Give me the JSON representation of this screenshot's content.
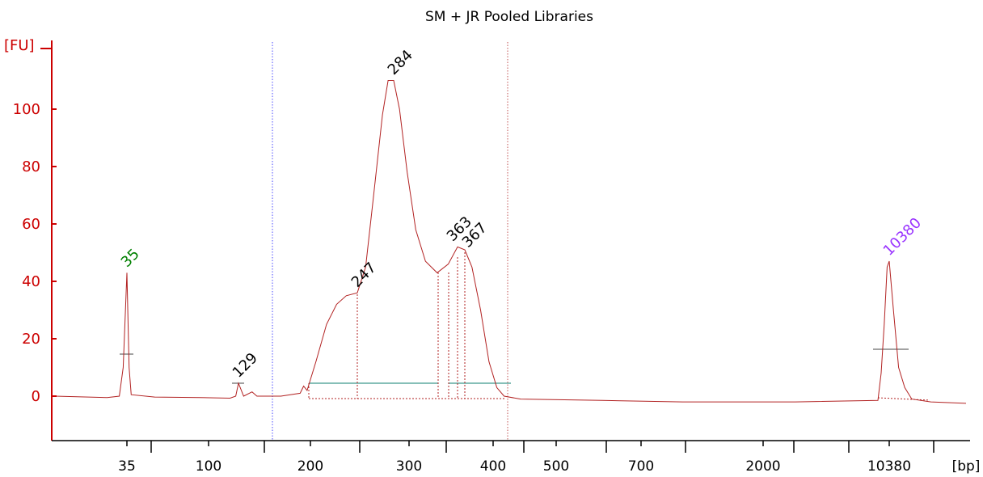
{
  "chart_data": {
    "type": "line",
    "title": "SM + JR Pooled Libraries",
    "ylabel": "[FU]",
    "xlabel": "[bp]",
    "ylim": [
      -15,
      120
    ],
    "y_ticks": [
      0,
      20,
      40,
      60,
      80,
      100
    ],
    "x_tick_labels": [
      "35",
      "100",
      "200",
      "300",
      "400",
      "500",
      "700",
      "2000",
      "10380"
    ],
    "legend": "none",
    "grid": false,
    "region_markers_bp": [
      150,
      420
    ],
    "colors": {
      "axis": "#cc0000",
      "trace": "#b22222",
      "lower_marker": "#008000",
      "upper_marker": "#9933ff",
      "peak_text": "#000000",
      "baseline": "#5faaa0",
      "region_line_left": "#4a4aff",
      "region_line_right": "#c05050"
    },
    "peaks": [
      {
        "label": "35",
        "bp": 35,
        "fu": 43,
        "kind": "lower_marker"
      },
      {
        "label": "129",
        "bp": 129,
        "fu": 4.5,
        "kind": "peak"
      },
      {
        "label": "247",
        "bp": 247,
        "fu": 36,
        "kind": "peak"
      },
      {
        "label": "284",
        "bp": 284,
        "fu": 110,
        "kind": "peak"
      },
      {
        "label": "363",
        "bp": 363,
        "fu": 52,
        "kind": "peak"
      },
      {
        "label": "367",
        "bp": 367,
        "fu": 51,
        "kind": "peak"
      },
      {
        "label": "10380",
        "bp": 10380,
        "fu": 47,
        "kind": "upper_marker"
      }
    ],
    "trace_points": [
      [
        20,
        0
      ],
      [
        30,
        -0.5
      ],
      [
        33,
        0
      ],
      [
        34,
        10
      ],
      [
        35,
        43
      ],
      [
        36,
        10
      ],
      [
        37,
        0.5
      ],
      [
        50,
        -0.3
      ],
      [
        90,
        -0.5
      ],
      [
        120,
        -0.7
      ],
      [
        126,
        0
      ],
      [
        129,
        4.5
      ],
      [
        132,
        0
      ],
      [
        137,
        1.5
      ],
      [
        140,
        0
      ],
      [
        160,
        0
      ],
      [
        185,
        1
      ],
      [
        190,
        3.5
      ],
      [
        195,
        2
      ],
      [
        205,
        12
      ],
      [
        215,
        25
      ],
      [
        225,
        32
      ],
      [
        235,
        35
      ],
      [
        247,
        36
      ],
      [
        255,
        45
      ],
      [
        263,
        70
      ],
      [
        272,
        98
      ],
      [
        278,
        110
      ],
      [
        284,
        110
      ],
      [
        290,
        100
      ],
      [
        298,
        78
      ],
      [
        308,
        58
      ],
      [
        320,
        47
      ],
      [
        335,
        43
      ],
      [
        350,
        46
      ],
      [
        363,
        52
      ],
      [
        367,
        51
      ],
      [
        375,
        45
      ],
      [
        385,
        30
      ],
      [
        395,
        12
      ],
      [
        405,
        3
      ],
      [
        415,
        0
      ],
      [
        440,
        -1
      ],
      [
        600,
        -1.5
      ],
      [
        1000,
        -2
      ],
      [
        3000,
        -2
      ],
      [
        8500,
        -1.5
      ],
      [
        9000,
        8
      ],
      [
        9500,
        25
      ],
      [
        10000,
        45
      ],
      [
        10380,
        47
      ],
      [
        10700,
        30
      ],
      [
        11100,
        10
      ],
      [
        11600,
        3
      ],
      [
        12200,
        -1
      ],
      [
        14000,
        -2
      ],
      [
        18000,
        -2.5
      ]
    ]
  }
}
